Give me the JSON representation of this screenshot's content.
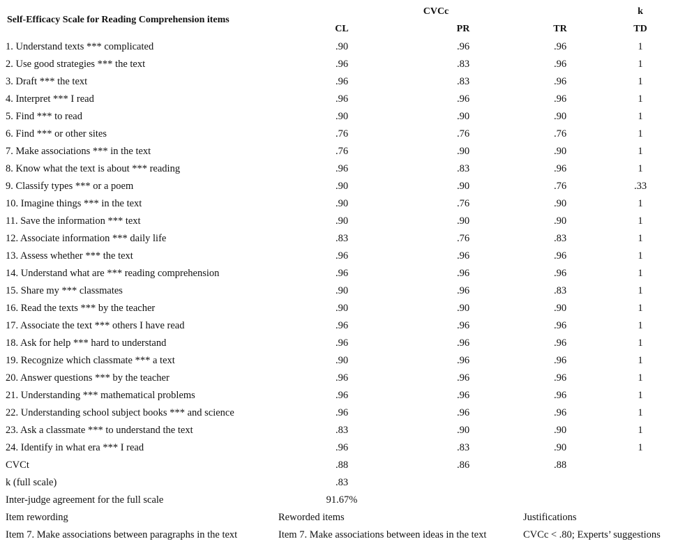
{
  "header": {
    "title": "Self-Efficacy Scale for Reading Comprehension items",
    "group_cvcc": "CVCc",
    "group_k": "k",
    "columns": [
      "CL",
      "PR",
      "TR",
      "TD"
    ]
  },
  "table": {
    "rows": [
      [
        "1. Understand texts *** complicated",
        ".90",
        ".96",
        ".96",
        "1"
      ],
      [
        "2. Use good strategies *** the text",
        ".96",
        ".83",
        ".96",
        "1"
      ],
      [
        "3. Draft *** the text",
        ".96",
        ".83",
        ".96",
        "1"
      ],
      [
        "4. Interpret *** I read",
        ".96",
        ".96",
        ".96",
        "1"
      ],
      [
        "5. Find *** to read",
        ".90",
        ".90",
        ".90",
        "1"
      ],
      [
        "6. Find *** or other sites",
        ".76",
        ".76",
        ".76",
        "1"
      ],
      [
        "7. Make associations *** in the text",
        ".76",
        ".90",
        ".90",
        "1"
      ],
      [
        "8. Know what the text is about *** reading",
        ".96",
        ".83",
        ".96",
        "1"
      ],
      [
        "9. Classify types *** or a poem",
        ".90",
        ".90",
        ".76",
        ".33"
      ],
      [
        "10. Imagine things *** in the text",
        ".90",
        ".76",
        ".90",
        "1"
      ],
      [
        "11. Save the information *** text",
        ".90",
        ".90",
        ".90",
        "1"
      ],
      [
        "12. Associate information *** daily life",
        ".83",
        ".76",
        ".83",
        "1"
      ],
      [
        "13. Assess whether *** the text",
        ".96",
        ".96",
        ".96",
        "1"
      ],
      [
        "14. Understand what are *** reading comprehension",
        ".96",
        ".96",
        ".96",
        "1"
      ],
      [
        "15. Share my *** classmates",
        ".90",
        ".96",
        ".83",
        "1"
      ],
      [
        "16. Read the texts *** by the teacher",
        ".90",
        ".90",
        ".90",
        "1"
      ],
      [
        "17. Associate the text *** others I have read",
        ".96",
        ".96",
        ".96",
        "1"
      ],
      [
        "18. Ask for help *** hard to understand",
        ".96",
        ".96",
        ".96",
        "1"
      ],
      [
        "19. Recognize which classmate *** a text",
        ".90",
        ".96",
        ".96",
        "1"
      ],
      [
        "20. Answer questions *** by the teacher",
        ".96",
        ".96",
        ".96",
        "1"
      ],
      [
        "21. Understanding *** mathematical problems",
        ".96",
        ".96",
        ".96",
        "1"
      ],
      [
        "22. Understanding school subject books *** and science",
        ".96",
        ".96",
        ".96",
        "1"
      ],
      [
        "23. Ask a classmate *** to understand the text",
        ".83",
        ".90",
        ".90",
        "1"
      ],
      [
        "24. Identify in what era *** I read",
        ".96",
        ".83",
        ".90",
        "1"
      ]
    ]
  },
  "summary": {
    "cvct": [
      "CVCt",
      ".88",
      ".86",
      ".88"
    ],
    "k_full": [
      "k (full scale)",
      ".83"
    ],
    "agreement": [
      "Inter-judge agreement for the full scale",
      "91.67%"
    ]
  },
  "rewording": {
    "headers": [
      "Item rewording",
      "Reworded items",
      "Justifications"
    ],
    "row": [
      "Item 7. Make associations between paragraphs in the text",
      "Item 7. Make associations between ideas in the text",
      "CVCc < .80; Experts’ suggestions"
    ]
  }
}
